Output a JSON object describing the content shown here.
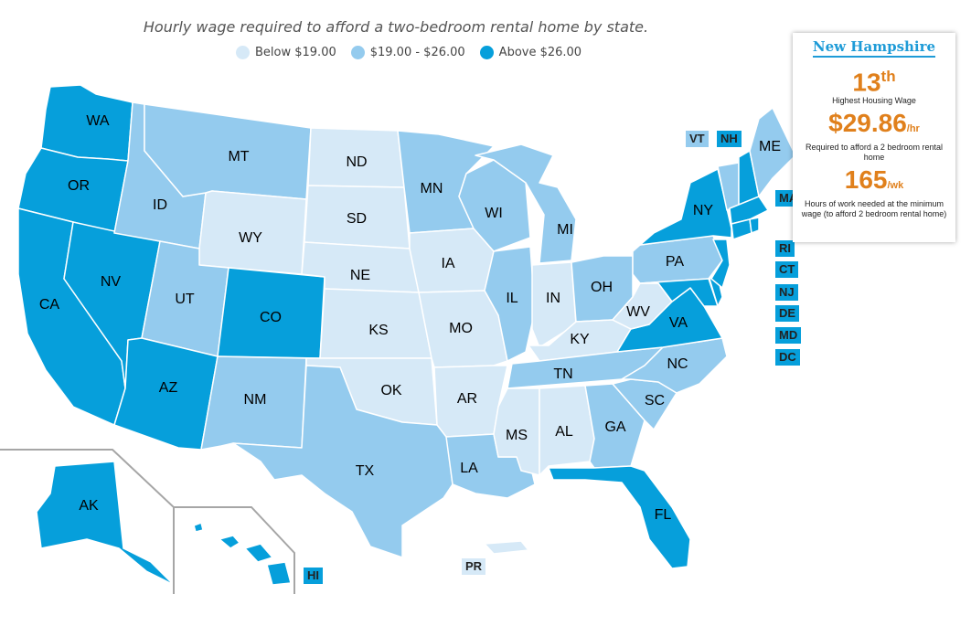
{
  "title": "Hourly wage required to afford a two-bedroom rental home by state.",
  "legend": [
    {
      "label": "Below $19.00",
      "color": "#d6e9f7"
    },
    {
      "label": "$19.00 - $26.00",
      "color": "#94cbee"
    },
    {
      "label": "Above $26.00",
      "color": "#069fdb"
    }
  ],
  "colors": {
    "low": "#d6e9f7",
    "mid": "#94cbee",
    "high": "#069fdb",
    "inset_border": "#a6a6a6"
  },
  "states": {
    "WA": "high",
    "OR": "high",
    "CA": "high",
    "NV": "high",
    "AZ": "high",
    "CO": "high",
    "ID": "mid",
    "MT": "mid",
    "UT": "mid",
    "NM": "mid",
    "TX": "mid",
    "MN": "mid",
    "WI": "mid",
    "MI": "mid",
    "IL": "mid",
    "OH": "mid",
    "PA": "mid",
    "TN": "mid",
    "NC": "mid",
    "SC": "mid",
    "GA": "mid",
    "LA": "mid",
    "ME": "mid",
    "VT": "mid",
    "WY": "low",
    "ND": "low",
    "SD": "low",
    "NE": "low",
    "KS": "low",
    "OK": "low",
    "IA": "low",
    "MO": "low",
    "AR": "low",
    "MS": "low",
    "AL": "low",
    "IN": "low",
    "KY": "low",
    "WV": "low",
    "PR": "low",
    "NY": "high",
    "VA": "high",
    "FL": "high",
    "NH": "high",
    "MA": "high",
    "RI": "high",
    "CT": "high",
    "NJ": "high",
    "DE": "high",
    "MD": "high",
    "DC": "high",
    "AK": "high",
    "HI": "high"
  },
  "tags": {
    "VT": "VT",
    "NH": "NH",
    "MA": "MA",
    "RI": "RI",
    "CT": "CT",
    "NJ": "NJ",
    "DE": "DE",
    "MD": "MD",
    "DC": "DC",
    "HI": "HI",
    "PR": "PR"
  },
  "info": {
    "state": "New Hampshire",
    "rank": "13",
    "rank_suffix": "th",
    "rank_caption": "Highest Housing Wage",
    "wage": "$29.86",
    "wage_unit": "/hr",
    "wage_caption": "Required to afford a 2 bedroom rental home",
    "hours": "165",
    "hours_unit": "/wk",
    "hours_caption": "Hours of work needed at the minimum wage (to afford 2 bedroom rental home)"
  }
}
